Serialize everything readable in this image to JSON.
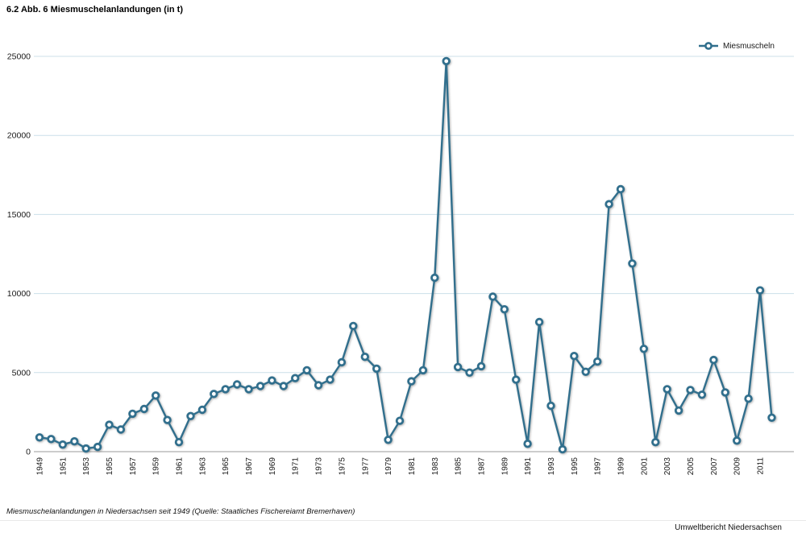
{
  "page": {
    "title": "6.2 Abb. 6 Miesmuschelanlandungen (in t)",
    "caption": "Miesmuschelanlandungen in Niedersachsen seit 1949 (Quelle: Staatliches Fischereiamt Bremerhaven)",
    "footer": "Umweltbericht Niedersachsen"
  },
  "legend": {
    "label": "Miesmuscheln"
  },
  "colors": {
    "series": "#316f8d",
    "grid": "#ccdfe9",
    "axis": "#999999",
    "marker_fill": "#ffffff",
    "tick_text": "#1a1a1a"
  },
  "chart_data": {
    "type": "line",
    "title": "6.2 Abb. 6 Miesmuschelanlandungen (in t)",
    "xlabel": "",
    "ylabel": "",
    "ylim": [
      0,
      25000
    ],
    "y_ticks": [
      0,
      5000,
      10000,
      15000,
      20000,
      25000
    ],
    "x_label_start": 1949,
    "x_label_end": 2011,
    "x_label_step": 2,
    "grid": true,
    "legend_position": "top-right",
    "series": [
      {
        "name": "Miesmuscheln",
        "x": [
          1949,
          1950,
          1951,
          1952,
          1953,
          1954,
          1955,
          1956,
          1957,
          1958,
          1959,
          1960,
          1961,
          1962,
          1963,
          1964,
          1965,
          1966,
          1967,
          1968,
          1969,
          1970,
          1971,
          1972,
          1973,
          1974,
          1975,
          1976,
          1977,
          1978,
          1979,
          1980,
          1981,
          1982,
          1983,
          1984,
          1985,
          1986,
          1987,
          1988,
          1989,
          1990,
          1991,
          1992,
          1993,
          1994,
          1995,
          1996,
          1997,
          1998,
          1999,
          2000,
          2001,
          2002,
          2003,
          2004,
          2005,
          2006,
          2007,
          2008,
          2009,
          2010,
          2011,
          2012
        ],
        "values": [
          900,
          800,
          450,
          650,
          200,
          300,
          1700,
          1400,
          2400,
          2700,
          3550,
          2000,
          600,
          2250,
          2650,
          3650,
          3950,
          4250,
          3950,
          4150,
          4500,
          4150,
          4650,
          5150,
          4200,
          4550,
          5650,
          7950,
          6000,
          5250,
          750,
          1950,
          4450,
          5150,
          11000,
          24700,
          5350,
          5000,
          5400,
          9800,
          9000,
          4550,
          500,
          8200,
          2900,
          150,
          6050,
          5050,
          5700,
          15650,
          16600,
          11900,
          6500,
          600,
          3950,
          2600,
          3900,
          3600,
          5800,
          3750,
          700,
          3350,
          10200,
          2150
        ]
      }
    ]
  }
}
